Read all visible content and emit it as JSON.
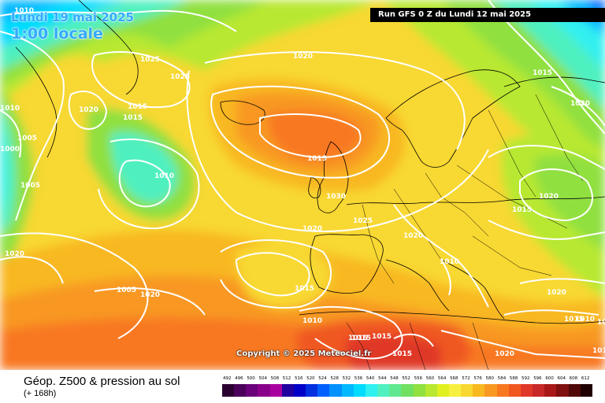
{
  "header": {
    "date": "Lundi 19 mai 2025",
    "time": "1:00 locale",
    "run": "Run GFS 0 Z du Lundi 12 mai 2025"
  },
  "copyright": "Copyright © 2025 Meteociel.fr",
  "footer": {
    "title": "Géop. Z500 & pression au sol",
    "subtitle": "(+ 168h)"
  },
  "legend": {
    "labels": [
      "492",
      "496",
      "500",
      "504",
      "508",
      "512",
      "516",
      "520",
      "524",
      "528",
      "532",
      "536",
      "540",
      "544",
      "548",
      "552",
      "556",
      "560",
      "564",
      "568",
      "572",
      "576",
      "580",
      "584",
      "588",
      "592",
      "596",
      "600",
      "604",
      "608",
      "612"
    ],
    "colors": [
      "#2a0030",
      "#4a005a",
      "#6a007a",
      "#8a008a",
      "#aa00a0",
      "#2000a0",
      "#0000c8",
      "#0030e0",
      "#0060ff",
      "#0090ff",
      "#00b8ff",
      "#00dcff",
      "#30f0f0",
      "#50f0c0",
      "#60e890",
      "#70e060",
      "#90e040",
      "#b8e830",
      "#e0f020",
      "#f8f040",
      "#f8d830",
      "#f8b820",
      "#f89820",
      "#f87820",
      "#f05820",
      "#e03828",
      "#c82828",
      "#a81818",
      "#801010",
      "#500808",
      "#200000"
    ]
  },
  "isobars": [
    {
      "label": "1010",
      "color": "#ffffff"
    },
    {
      "label": "1025"
    },
    {
      "label": "1025"
    },
    {
      "label": "1015"
    },
    {
      "label": "1020"
    },
    {
      "label": "1015"
    },
    {
      "label": "1010"
    },
    {
      "label": "1000"
    },
    {
      "label": "1005"
    },
    {
      "label": "1005"
    },
    {
      "label": "1010"
    },
    {
      "label": "1015"
    },
    {
      "label": "1030"
    },
    {
      "label": "1025"
    },
    {
      "label": "1020"
    },
    {
      "label": "1020"
    },
    {
      "label": "1020"
    },
    {
      "label": "1005"
    },
    {
      "label": "1020"
    },
    {
      "label": "1015"
    },
    {
      "label": "1010"
    },
    {
      "label": "1015"
    },
    {
      "label": "1015"
    },
    {
      "label": "1015"
    },
    {
      "label": "1015"
    },
    {
      "label": "1020"
    },
    {
      "label": "1020"
    },
    {
      "label": "1015"
    },
    {
      "label": "1010"
    },
    {
      "label": "1020"
    },
    {
      "label": "1015"
    },
    {
      "label": "1020"
    },
    {
      "label": "1020"
    },
    {
      "label": "1015"
    },
    {
      "label": "1015"
    },
    {
      "label": "1010"
    },
    {
      "label": "1015"
    }
  ]
}
